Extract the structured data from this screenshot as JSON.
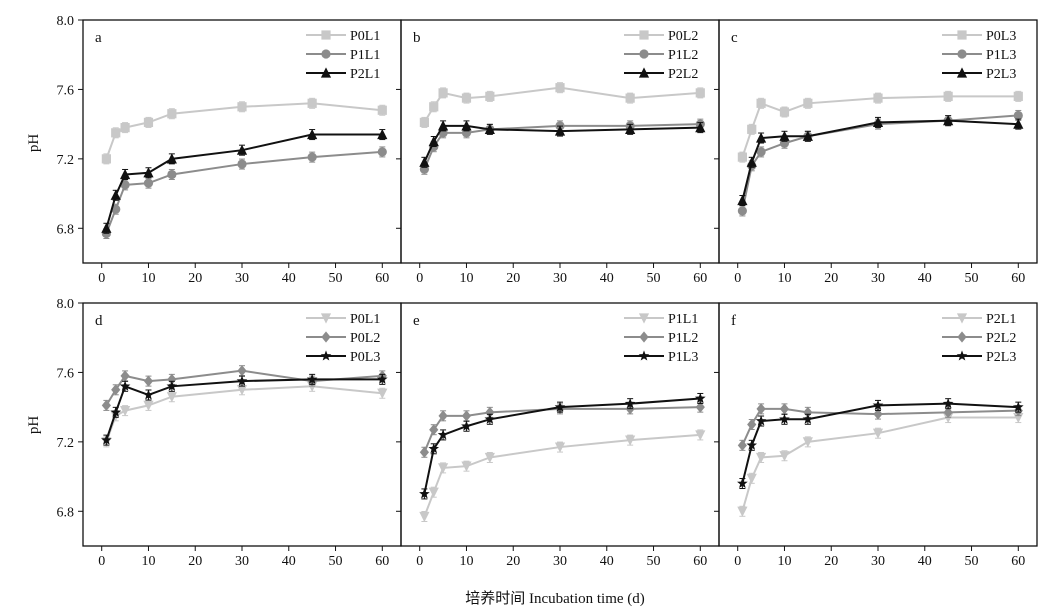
{
  "figure": {
    "y_label": "pH",
    "x_label": "培养时间 Incubation time (d)"
  },
  "colors": {
    "light": "#c8c8c8",
    "mid": "#8c8c8c",
    "dark": "#111111"
  },
  "chart_data": [
    {
      "type": "line",
      "panel": "a",
      "row": 0,
      "col": 0,
      "x": [
        1,
        3,
        5,
        10,
        15,
        30,
        45,
        60
      ],
      "xlim": [
        -4,
        64
      ],
      "ylim": [
        6.6,
        8.0
      ],
      "xticks": [
        0,
        10,
        20,
        30,
        40,
        50,
        60
      ],
      "yticks": [
        6.8,
        7.2,
        7.6,
        8.0
      ],
      "legend": "top-right",
      "series": [
        {
          "name": "P0L1",
          "color": "light",
          "marker": "square",
          "values": [
            7.2,
            7.35,
            7.38,
            7.41,
            7.46,
            7.5,
            7.52,
            7.48
          ]
        },
        {
          "name": "P1L1",
          "color": "mid",
          "marker": "circle",
          "values": [
            6.77,
            6.91,
            7.05,
            7.06,
            7.11,
            7.17,
            7.21,
            7.24
          ]
        },
        {
          "name": "P2L1",
          "color": "dark",
          "marker": "triangle",
          "values": [
            6.8,
            6.99,
            7.11,
            7.12,
            7.2,
            7.25,
            7.34,
            7.34
          ]
        }
      ]
    },
    {
      "type": "line",
      "panel": "b",
      "row": 0,
      "col": 1,
      "x": [
        1,
        3,
        5,
        10,
        15,
        30,
        45,
        60
      ],
      "xlim": [
        -4,
        64
      ],
      "ylim": [
        6.6,
        8.0
      ],
      "xticks": [
        0,
        10,
        20,
        30,
        40,
        50,
        60
      ],
      "yticks": [
        6.8,
        7.2,
        7.6,
        8.0
      ],
      "legend": "top-right",
      "series": [
        {
          "name": "P0L2",
          "color": "light",
          "marker": "square",
          "values": [
            7.41,
            7.5,
            7.58,
            7.55,
            7.56,
            7.61,
            7.55,
            7.58
          ]
        },
        {
          "name": "P1L2",
          "color": "mid",
          "marker": "circle",
          "values": [
            7.14,
            7.27,
            7.35,
            7.35,
            7.37,
            7.39,
            7.39,
            7.4
          ]
        },
        {
          "name": "P2L2",
          "color": "dark",
          "marker": "triangle",
          "values": [
            7.18,
            7.3,
            7.39,
            7.39,
            7.37,
            7.36,
            7.37,
            7.38
          ]
        }
      ]
    },
    {
      "type": "line",
      "panel": "c",
      "row": 0,
      "col": 2,
      "x": [
        1,
        3,
        5,
        10,
        15,
        30,
        45,
        60
      ],
      "xlim": [
        -4,
        64
      ],
      "ylim": [
        6.6,
        8.0
      ],
      "xticks": [
        0,
        10,
        20,
        30,
        40,
        50,
        60
      ],
      "yticks": [
        6.8,
        7.2,
        7.6,
        8.0
      ],
      "legend": "top-right",
      "series": [
        {
          "name": "P0L3",
          "color": "light",
          "marker": "square",
          "values": [
            7.21,
            7.37,
            7.52,
            7.47,
            7.52,
            7.55,
            7.56,
            7.56
          ]
        },
        {
          "name": "P1L3",
          "color": "mid",
          "marker": "circle",
          "values": [
            6.9,
            7.16,
            7.24,
            7.29,
            7.33,
            7.4,
            7.42,
            7.45
          ]
        },
        {
          "name": "P2L3",
          "color": "dark",
          "marker": "triangle",
          "values": [
            6.96,
            7.18,
            7.32,
            7.33,
            7.33,
            7.41,
            7.42,
            7.4
          ]
        }
      ]
    },
    {
      "type": "line",
      "panel": "d",
      "row": 1,
      "col": 0,
      "x": [
        1,
        3,
        5,
        10,
        15,
        30,
        45,
        60
      ],
      "xlim": [
        -4,
        64
      ],
      "ylim": [
        6.6,
        8.0
      ],
      "xticks": [
        0,
        10,
        20,
        30,
        40,
        50,
        60
      ],
      "yticks": [
        6.8,
        7.2,
        7.6,
        8.0
      ],
      "legend": "top-right",
      "series": [
        {
          "name": "P0L1",
          "color": "light",
          "marker": "triangle-down",
          "values": [
            7.2,
            7.35,
            7.38,
            7.41,
            7.46,
            7.5,
            7.52,
            7.48
          ]
        },
        {
          "name": "P0L2",
          "color": "mid",
          "marker": "diamond",
          "values": [
            7.41,
            7.5,
            7.58,
            7.55,
            7.56,
            7.61,
            7.55,
            7.58
          ]
        },
        {
          "name": "P0L3",
          "color": "dark",
          "marker": "star",
          "values": [
            7.21,
            7.37,
            7.52,
            7.47,
            7.52,
            7.55,
            7.56,
            7.56
          ]
        }
      ]
    },
    {
      "type": "line",
      "panel": "e",
      "row": 1,
      "col": 1,
      "x": [
        1,
        3,
        5,
        10,
        15,
        30,
        45,
        60
      ],
      "xlim": [
        -4,
        64
      ],
      "ylim": [
        6.6,
        8.0
      ],
      "xticks": [
        0,
        10,
        20,
        30,
        40,
        50,
        60
      ],
      "yticks": [
        6.8,
        7.2,
        7.6,
        8.0
      ],
      "legend": "top-right",
      "series": [
        {
          "name": "P1L1",
          "color": "light",
          "marker": "triangle-down",
          "values": [
            6.77,
            6.91,
            7.05,
            7.06,
            7.11,
            7.17,
            7.21,
            7.24
          ]
        },
        {
          "name": "P1L2",
          "color": "mid",
          "marker": "diamond",
          "values": [
            7.14,
            7.27,
            7.35,
            7.35,
            7.37,
            7.39,
            7.39,
            7.4
          ]
        },
        {
          "name": "P1L3",
          "color": "dark",
          "marker": "star",
          "values": [
            6.9,
            7.16,
            7.24,
            7.29,
            7.33,
            7.4,
            7.42,
            7.45
          ]
        }
      ]
    },
    {
      "type": "line",
      "panel": "f",
      "row": 1,
      "col": 2,
      "x": [
        1,
        3,
        5,
        10,
        15,
        30,
        45,
        60
      ],
      "xlim": [
        -4,
        64
      ],
      "ylim": [
        6.6,
        8.0
      ],
      "xticks": [
        0,
        10,
        20,
        30,
        40,
        50,
        60
      ],
      "yticks": [
        6.8,
        7.2,
        7.6,
        8.0
      ],
      "legend": "top-right",
      "series": [
        {
          "name": "P2L1",
          "color": "light",
          "marker": "triangle-down",
          "values": [
            6.8,
            6.99,
            7.11,
            7.12,
            7.2,
            7.25,
            7.34,
            7.34
          ]
        },
        {
          "name": "P2L2",
          "color": "mid",
          "marker": "diamond",
          "values": [
            7.18,
            7.3,
            7.39,
            7.39,
            7.37,
            7.36,
            7.37,
            7.38
          ]
        },
        {
          "name": "P2L3",
          "color": "dark",
          "marker": "star",
          "values": [
            6.96,
            7.18,
            7.32,
            7.33,
            7.33,
            7.41,
            7.42,
            7.4
          ]
        }
      ]
    }
  ]
}
